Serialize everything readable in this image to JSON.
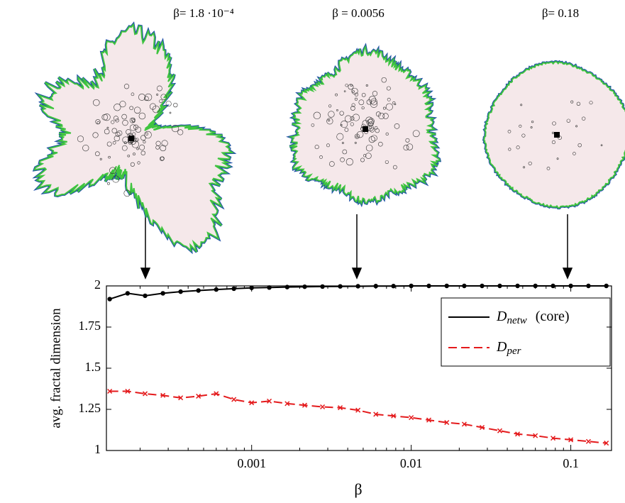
{
  "chart_data": {
    "type": "scatter",
    "panels": [
      "β= 1.8 ·10⁻⁴",
      "β = 0.0056",
      "β= 0.18"
    ],
    "x_label": "β",
    "y_label": "avg. fractal dimension",
    "log_x": true,
    "xlim": [
      0.000123,
      0.18
    ],
    "xticks": [
      0.001,
      0.01,
      0.1
    ],
    "ylim": [
      1,
      2
    ],
    "yticks": [
      1,
      1.25,
      1.5,
      1.75,
      2
    ],
    "x": [
      0.000129,
      0.000167,
      0.000215,
      0.000278,
      0.000359,
      0.000464,
      0.0006,
      0.000774,
      0.001,
      0.00129,
      0.00167,
      0.00215,
      0.00278,
      0.00359,
      0.00464,
      0.006,
      0.00774,
      0.01,
      0.0129,
      0.0167,
      0.0215,
      0.0278,
      0.0359,
      0.0464,
      0.06,
      0.0774,
      0.1,
      0.129,
      0.167
    ],
    "series": [
      {
        "name": "D",
        "name_sub": "netw",
        "name_suffix": "(core)",
        "color": "#000000",
        "marker": "circle",
        "values": [
          1.92,
          1.955,
          1.94,
          1.955,
          1.965,
          1.972,
          1.978,
          1.983,
          1.988,
          1.99,
          1.993,
          1.995,
          1.996,
          1.997,
          1.998,
          1.999,
          1.999,
          2.0,
          2.0,
          2.0,
          2.0,
          2.0,
          2.0,
          2.0,
          2.0,
          2.0,
          2.0,
          2.0,
          2.0
        ]
      },
      {
        "name": "D",
        "name_sub": "per",
        "color": "#e41a1c",
        "marker": "cross",
        "dashed": true,
        "values": [
          1.36,
          1.36,
          1.345,
          1.335,
          1.32,
          1.33,
          1.345,
          1.31,
          1.29,
          1.3,
          1.285,
          1.275,
          1.265,
          1.26,
          1.245,
          1.22,
          1.21,
          1.2,
          1.185,
          1.17,
          1.16,
          1.14,
          1.12,
          1.1,
          1.09,
          1.075,
          1.065,
          1.055,
          1.045
        ]
      }
    ]
  }
}
